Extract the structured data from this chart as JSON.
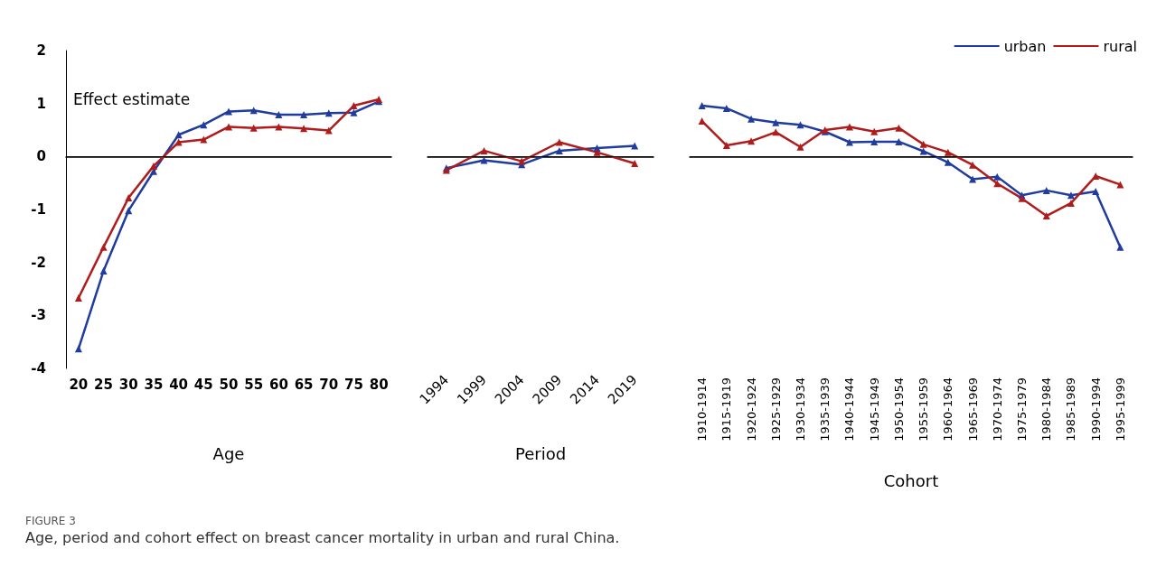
{
  "chart_data": [
    {
      "type": "line",
      "xlabel": "Age",
      "ylabel": "Effect estimate",
      "categories": [
        "20",
        "25",
        "30",
        "35",
        "40",
        "45",
        "50",
        "55",
        "60",
        "65",
        "70",
        "75",
        "80"
      ],
      "ylim": [
        -4,
        2
      ],
      "yticks": [
        -4,
        -3,
        -2,
        -1,
        0,
        1,
        2
      ],
      "grid": false,
      "marker": "triangle",
      "line_style": "solid",
      "ref_lines": [
        {
          "axis": "y",
          "value": 0,
          "color": "#000000"
        }
      ],
      "series": [
        {
          "color": "#1f3c9e",
          "values": [
            -3.63,
            -2.16,
            -1.02,
            -0.28,
            0.41,
            0.6,
            0.85,
            0.87,
            0.79,
            0.79,
            0.82,
            0.83,
            1.04
          ]
        },
        {
          "color": "#b01c1c",
          "values": [
            -2.67,
            -1.71,
            -0.78,
            -0.18,
            0.27,
            0.32,
            0.56,
            0.54,
            0.56,
            0.53,
            0.49,
            0.96,
            1.08
          ]
        }
      ],
      "annotations": [
        "FIGURE 3",
        "Age, period and cohort effect on breast cancer mortality in urban and rural China."
      ]
    },
    {
      "type": "line",
      "xlabel": "Period",
      "categories": [
        "1994",
        "1999",
        "2004",
        "2009",
        "2014",
        "2019"
      ],
      "ylim": [
        -4,
        2
      ],
      "yticks": [
        -4,
        -3,
        -2,
        -1,
        0,
        1,
        2
      ],
      "tick_labels": "x",
      "grid": false,
      "marker": "triangle",
      "line_style": "solid",
      "ref_lines": [
        {
          "axis": "y",
          "value": 0,
          "color": "#000000"
        }
      ],
      "series": [
        {
          "color": "#1f3c9e",
          "values": [
            -0.22,
            -0.07,
            -0.15,
            0.11,
            0.16,
            0.2
          ]
        },
        {
          "color": "#b01c1c",
          "values": [
            -0.26,
            0.11,
            -0.09,
            0.27,
            0.08,
            -0.13
          ]
        }
      ]
    },
    {
      "type": "line",
      "xlabel": "Cohort",
      "categories": [
        "1910-1914",
        "1915-1919",
        "1920-1924",
        "1925-1929",
        "1930-1934",
        "1935-1939",
        "1940-1944",
        "1945-1949",
        "1950-1954",
        "1955-1959",
        "1960-1964",
        "1965-1969",
        "1970-1974",
        "1975-1979",
        "1980-1984",
        "1985-1989",
        "1990-1994",
        "1995-1999"
      ],
      "ylim": [
        -4,
        2
      ],
      "yticks": [
        -4,
        -3,
        -2,
        -1,
        0,
        1,
        2
      ],
      "tick_labels": "x",
      "grid": false,
      "legend": "top right",
      "marker": "triangle",
      "line_style": "solid",
      "ref_lines": [
        {
          "axis": "y",
          "value": 0,
          "color": "#000000"
        }
      ],
      "series": [
        {
          "name": "urban",
          "color": "#1f3c9e",
          "values": [
            0.96,
            0.91,
            0.71,
            0.64,
            0.6,
            0.47,
            0.27,
            0.28,
            0.28,
            0.1,
            -0.11,
            -0.43,
            -0.38,
            -0.73,
            -0.64,
            -0.73,
            -0.66,
            -1.71
          ]
        },
        {
          "name": "rural",
          "color": "#b01c1c",
          "values": [
            0.67,
            0.21,
            0.29,
            0.46,
            0.18,
            0.5,
            0.56,
            0.47,
            0.54,
            0.23,
            0.08,
            -0.16,
            -0.51,
            -0.79,
            -1.12,
            -0.88,
            -0.37,
            -0.53
          ]
        }
      ]
    }
  ]
}
